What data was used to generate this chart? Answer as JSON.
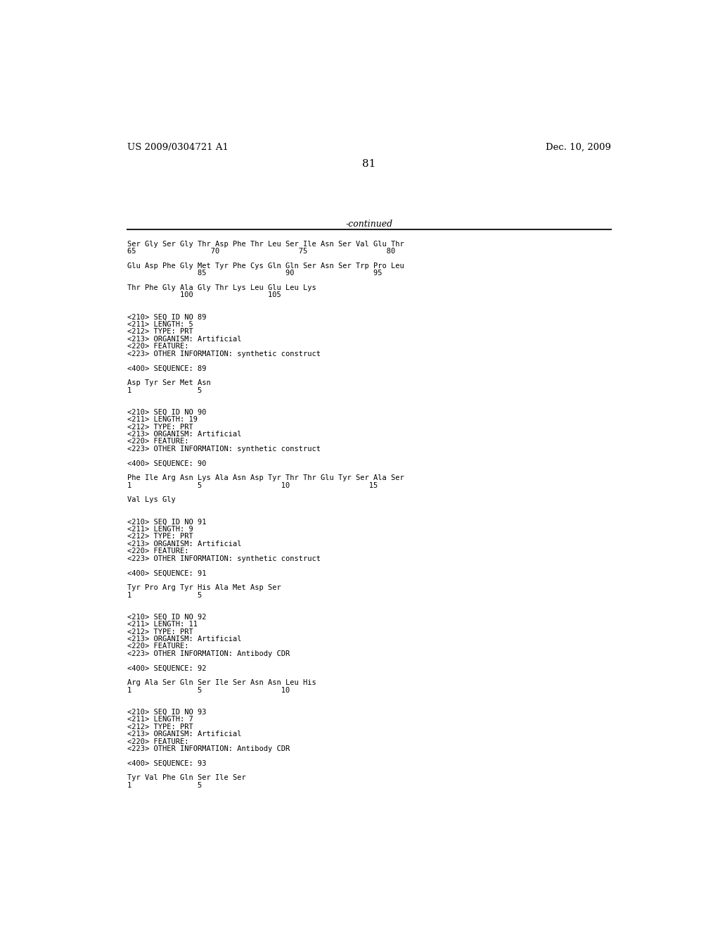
{
  "header_left": "US 2009/0304721 A1",
  "header_right": "Dec. 10, 2009",
  "page_number": "81",
  "continued_label": "-continued",
  "background_color": "#ffffff",
  "text_color": "#000000",
  "lines": [
    "Ser Gly Ser Gly Thr Asp Phe Thr Leu Ser Ile Asn Ser Val Glu Thr",
    "65                 70                  75                  80",
    "",
    "Glu Asp Phe Gly Met Tyr Phe Cys Gln Gln Ser Asn Ser Trp Pro Leu",
    "                85                  90                  95",
    "",
    "Thr Phe Gly Ala Gly Thr Lys Leu Glu Leu Lys",
    "            100                 105",
    "",
    "",
    "<210> SEQ ID NO 89",
    "<211> LENGTH: 5",
    "<212> TYPE: PRT",
    "<213> ORGANISM: Artificial",
    "<220> FEATURE:",
    "<223> OTHER INFORMATION: synthetic construct",
    "",
    "<400> SEQUENCE: 89",
    "",
    "Asp Tyr Ser Met Asn",
    "1               5",
    "",
    "",
    "<210> SEQ ID NO 90",
    "<211> LENGTH: 19",
    "<212> TYPE: PRT",
    "<213> ORGANISM: Artificial",
    "<220> FEATURE:",
    "<223> OTHER INFORMATION: synthetic construct",
    "",
    "<400> SEQUENCE: 90",
    "",
    "Phe Ile Arg Asn Lys Ala Asn Asp Tyr Thr Thr Glu Tyr Ser Ala Ser",
    "1               5                  10                  15",
    "",
    "Val Lys Gly",
    "",
    "",
    "<210> SEQ ID NO 91",
    "<211> LENGTH: 9",
    "<212> TYPE: PRT",
    "<213> ORGANISM: Artificial",
    "<220> FEATURE:",
    "<223> OTHER INFORMATION: synthetic construct",
    "",
    "<400> SEQUENCE: 91",
    "",
    "Tyr Pro Arg Tyr His Ala Met Asp Ser",
    "1               5",
    "",
    "",
    "<210> SEQ ID NO 92",
    "<211> LENGTH: 11",
    "<212> TYPE: PRT",
    "<213> ORGANISM: Artificial",
    "<220> FEATURE:",
    "<223> OTHER INFORMATION: Antibody CDR",
    "",
    "<400> SEQUENCE: 92",
    "",
    "Arg Ala Ser Gln Ser Ile Ser Asn Asn Leu His",
    "1               5                  10",
    "",
    "",
    "<210> SEQ ID NO 93",
    "<211> LENGTH: 7",
    "<212> TYPE: PRT",
    "<213> ORGANISM: Artificial",
    "<220> FEATURE:",
    "<223> OTHER INFORMATION: Antibody CDR",
    "",
    "<400> SEQUENCE: 93",
    "",
    "Tyr Val Phe Gln Ser Ile Ser",
    "1               5"
  ]
}
